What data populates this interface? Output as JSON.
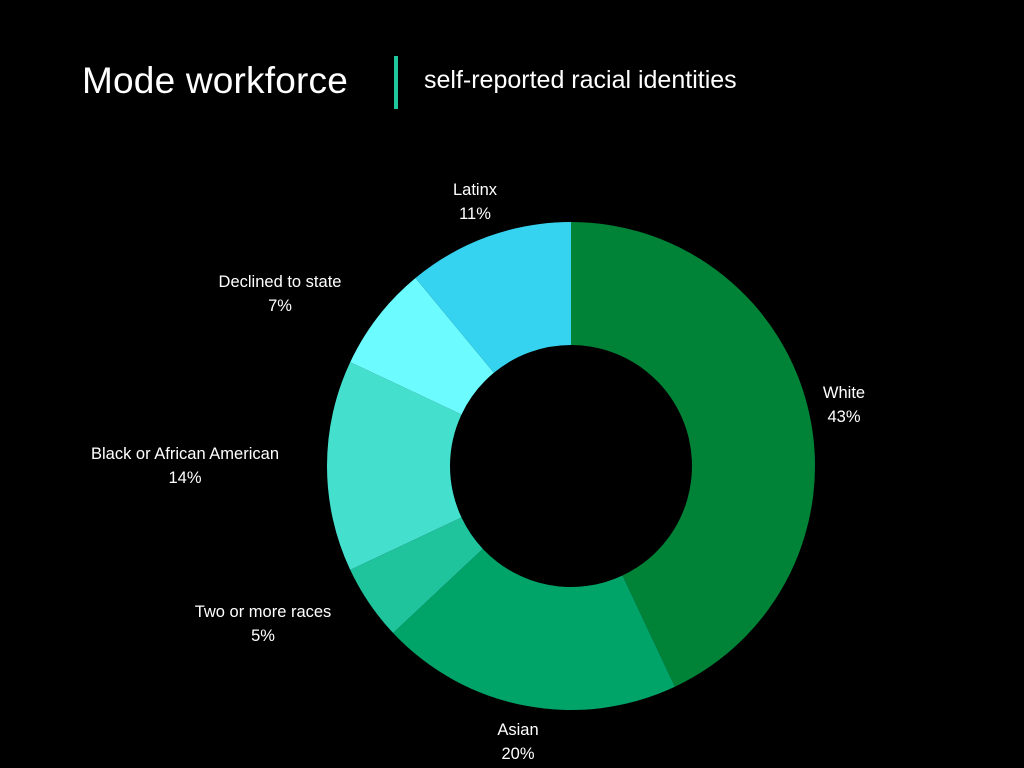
{
  "header": {
    "title": "Mode workforce",
    "subtitle": "self-reported racial identities",
    "divider_color": "#1ec79c"
  },
  "chart_data": {
    "type": "pie",
    "style": "donut",
    "title": "Mode workforce",
    "subtitle": "self-reported racial identities",
    "unit": "%",
    "direction": "clockwise from top",
    "slices": [
      {
        "name": "White",
        "value": 43,
        "label": "43%",
        "color": "#008237"
      },
      {
        "name": "Asian",
        "value": 20,
        "label": "20%",
        "color": "#00a368"
      },
      {
        "name": "Two or more races",
        "value": 5,
        "label": "5%",
        "color": "#1fc39c"
      },
      {
        "name": "Black or African American",
        "value": 14,
        "label": "14%",
        "color": "#44e0cd"
      },
      {
        "name": "Declined to state",
        "value": 7,
        "label": "7%",
        "color": "#6cfcff"
      },
      {
        "name": "Latinx",
        "value": 11,
        "label": "11%",
        "color": "#36d3f0"
      }
    ]
  }
}
